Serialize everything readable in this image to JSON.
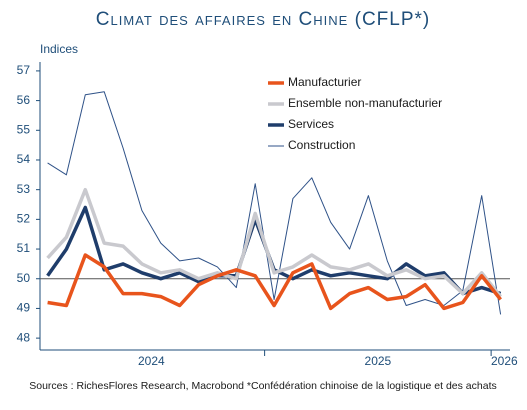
{
  "chart_data": {
    "type": "line",
    "title": "Climat des affaires en Chine (CFLP*)",
    "y_label": "Indices",
    "source": "Sources : RichesFlores Research, Macrobond *Confédération chinoise de la logistique et des achats",
    "categories": [
      null,
      null,
      null,
      null,
      null,
      null,
      null,
      null,
      null,
      null,
      null,
      null,
      null,
      null,
      null,
      null,
      null,
      null,
      null,
      null,
      null,
      null,
      null,
      null,
      null
    ],
    "xlim": [
      -0.4,
      24.5
    ],
    "xticks": [
      {
        "value": 5.5,
        "label": "2024"
      },
      {
        "value": 17.5,
        "label": "2025"
      },
      {
        "value": 24.2,
        "label": "2026"
      }
    ],
    "xtick_marks": [
      11.5,
      23.5
    ],
    "ylim": [
      47.6,
      57.3
    ],
    "yticks": [
      48,
      49,
      50,
      51,
      52,
      53,
      54,
      55,
      56,
      57
    ],
    "reference_line": 50,
    "series": [
      {
        "name": "Manufacturier",
        "color": "#e8541c",
        "width": 3.5,
        "values": [
          49.2,
          49.1,
          50.8,
          50.4,
          49.5,
          49.5,
          49.4,
          49.1,
          49.8,
          50.1,
          50.3,
          50.1,
          49.1,
          50.2,
          50.5,
          49.0,
          49.5,
          49.7,
          49.3,
          49.4,
          49.8,
          49.0,
          49.2,
          50.1,
          49.3
        ]
      },
      {
        "name": "Ensemble non-manufacturier",
        "color": "#c9c9ce",
        "width": 3.5,
        "values": [
          50.7,
          51.4,
          53.0,
          51.2,
          51.1,
          50.5,
          50.2,
          50.3,
          50.0,
          50.2,
          50.0,
          52.2,
          50.2,
          50.4,
          50.8,
          50.4,
          50.3,
          50.5,
          50.1,
          50.3,
          50.0,
          50.1,
          49.5,
          50.2,
          49.4
        ]
      },
      {
        "name": "Services",
        "color": "#1f3d6b",
        "width": 3.5,
        "values": [
          50.1,
          51.0,
          52.4,
          50.3,
          50.5,
          50.2,
          50.0,
          50.2,
          49.9,
          50.1,
          50.1,
          52.0,
          50.3,
          50.0,
          50.3,
          50.1,
          50.2,
          50.1,
          50.0,
          50.5,
          50.1,
          50.2,
          49.5,
          49.7,
          49.5
        ]
      },
      {
        "name": "Construction",
        "color": "#2f5288",
        "width": 1,
        "values": [
          53.9,
          53.5,
          56.2,
          56.3,
          54.4,
          52.3,
          51.2,
          50.6,
          50.7,
          50.4,
          49.7,
          53.2,
          49.3,
          52.7,
          53.4,
          51.9,
          51.0,
          52.8,
          50.6,
          49.1,
          49.3,
          49.1,
          49.6,
          52.8,
          48.8
        ]
      }
    ]
  }
}
